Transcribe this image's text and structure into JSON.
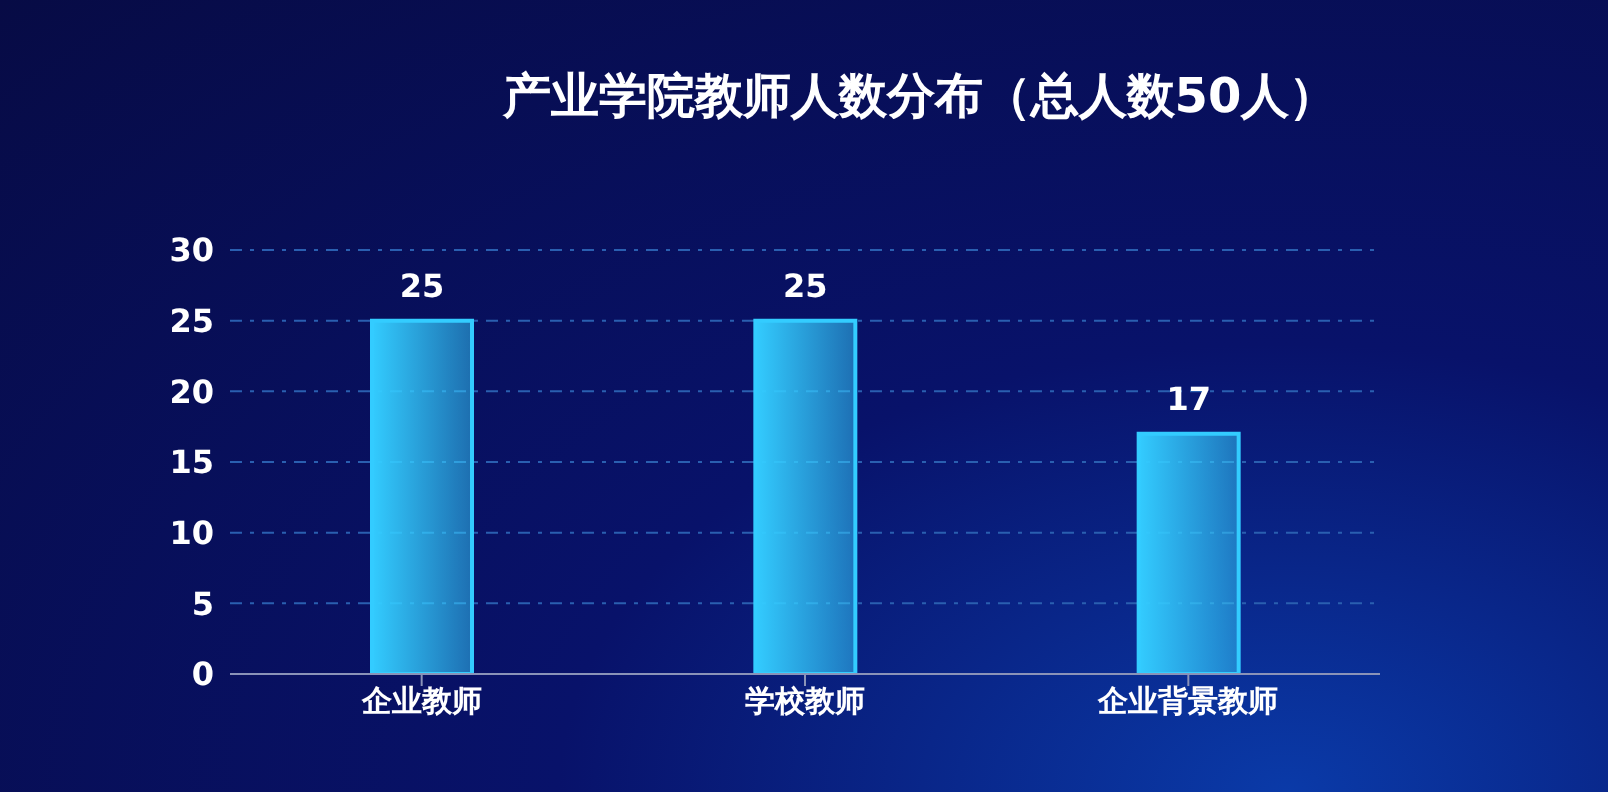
{
  "chart_data": {
    "type": "bar",
    "title": "产业学院教师人数分布（总人数50人）",
    "categories": [
      "企业教师",
      "学校教师",
      "企业背景教师"
    ],
    "values": [
      25,
      25,
      17
    ],
    "color": "#33ccff",
    "ylim": [
      0,
      30
    ],
    "yticks": [
      0,
      5,
      10,
      15,
      20,
      25,
      30
    ],
    "grid": "y",
    "data_labels": true
  }
}
